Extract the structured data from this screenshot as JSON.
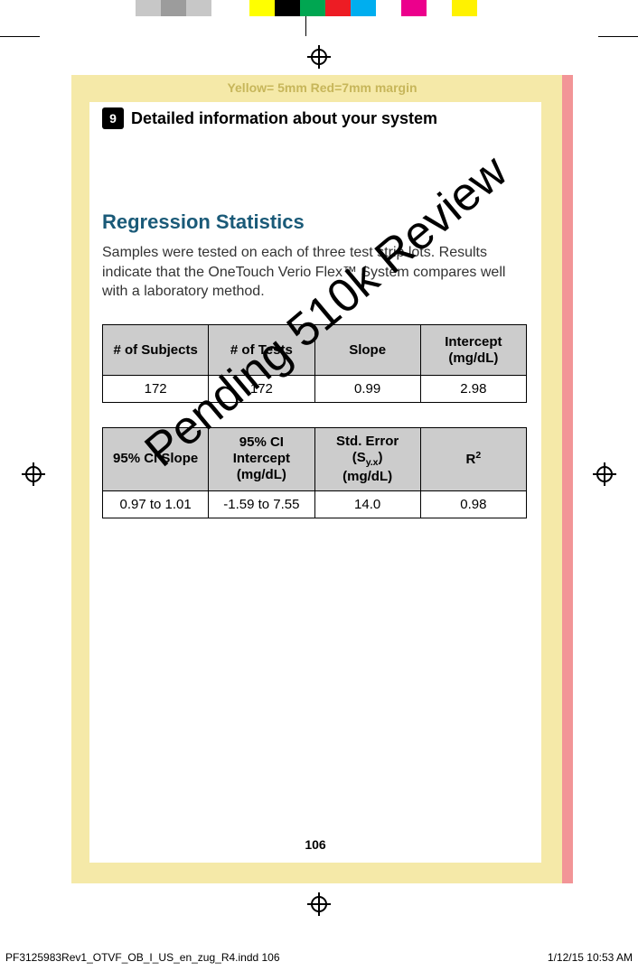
{
  "printmarks": {
    "color_bar": [
      {
        "color": "#ffffff",
        "w": 150
      },
      {
        "color": "#c7c7c7",
        "w": 28
      },
      {
        "color": "#9c9c9c",
        "w": 28
      },
      {
        "color": "#c7c7c7",
        "w": 28
      },
      {
        "color": "#ffffff",
        "w": 42
      },
      {
        "color": "#ffff00",
        "w": 28
      },
      {
        "color": "#000000",
        "w": 28
      },
      {
        "color": "#00a651",
        "w": 28
      },
      {
        "color": "#ed1c24",
        "w": 28
      },
      {
        "color": "#00aeef",
        "w": 28
      },
      {
        "color": "#ffffff",
        "w": 28
      },
      {
        "color": "#ec008c",
        "w": 28
      },
      {
        "color": "#ffffff",
        "w": 28
      },
      {
        "color": "#fff200",
        "w": 28
      },
      {
        "color": "#ffffff",
        "w": 178
      }
    ],
    "margin_label": "Yellow= 5mm  Red=7mm margin"
  },
  "section": {
    "number": "9",
    "title": "Detailed information about your system"
  },
  "heading": "Regression Statistics",
  "body": "Samples were tested on each of three test strip lots. Results indicate that the OneTouch Verio Flex™ System compares well with a laboratory method.",
  "table1": {
    "header_bg": "#cccccc",
    "columns": [
      "# of Subjects",
      "# of Tests",
      "Slope",
      "Intercept (mg/dL)"
    ],
    "rows": [
      [
        "172",
        "172",
        "0.99",
        "2.98"
      ]
    ]
  },
  "table2": {
    "header_bg": "#cccccc",
    "columns_html": [
      "95% CI Slope",
      "95% CI<br>Intercept<br>(mg/dL)",
      "Std. Error<br>(S<sub>y.x</sub>)<br>(mg/dL)",
      "R<sup>2</sup>"
    ],
    "rows": [
      [
        "0.97 to 1.01",
        "-1.59 to 7.55",
        "14.0",
        "0.98"
      ]
    ]
  },
  "page_number": "106",
  "watermark": "Pending 510k Review",
  "footer": {
    "left": "PF3125983Rev1_OTVF_OB_I_US_en_zug_R4.indd   106",
    "right": "1/12/15   10:53 AM"
  },
  "colors": {
    "page_bg": "#f5e9a8",
    "red_stripe": "#f29597",
    "heading": "#1a5a78",
    "margin_label": "#c7b65a"
  }
}
